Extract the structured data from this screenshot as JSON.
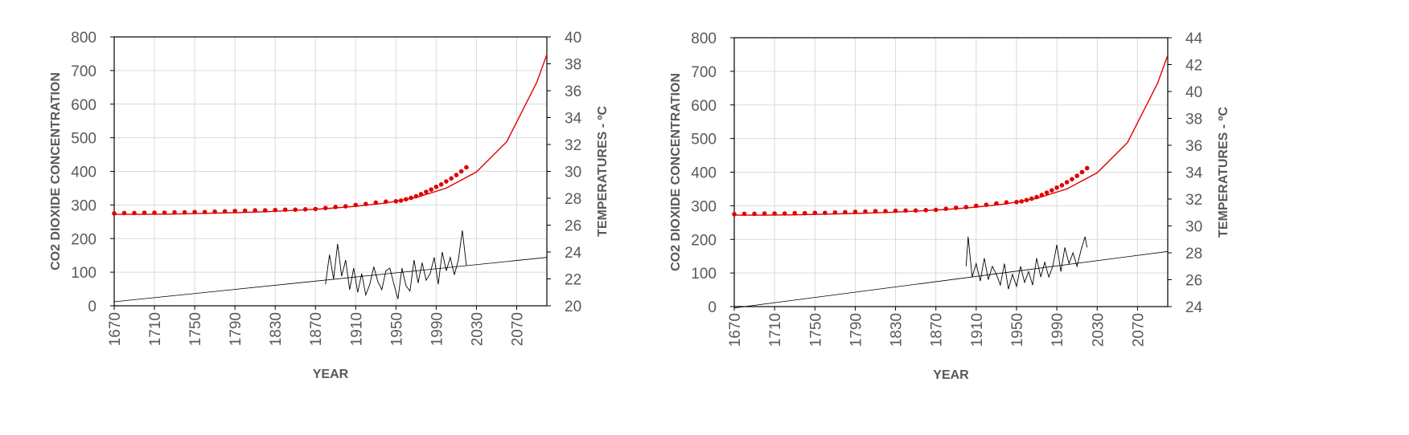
{
  "chart_data": [
    {
      "type": "line",
      "title": "",
      "xlabel": "YEAR",
      "ylabel": "CO2 DIOXIDE CONCENTRATION",
      "y2label": "TEMPERATURES - ºC",
      "xlim": [
        1670,
        2100
      ],
      "ylim": [
        0,
        800
      ],
      "y2lim": [
        20,
        40
      ],
      "x_ticks": [
        1670,
        1710,
        1750,
        1790,
        1830,
        1870,
        1910,
        1950,
        1990,
        2030,
        2070
      ],
      "y_ticks": [
        0,
        100,
        200,
        300,
        400,
        500,
        600,
        700,
        800
      ],
      "y2_ticks": [
        20,
        22,
        24,
        26,
        28,
        30,
        32,
        34,
        36,
        38,
        40
      ],
      "grid": true,
      "colors": {
        "co2": "#e00000",
        "temperature": "#000000"
      },
      "series": [
        {
          "kind": "scatter",
          "axis": "left",
          "x": [
            1670,
            1680,
            1690,
            1700,
            1710,
            1720,
            1730,
            1740,
            1750,
            1760,
            1770,
            1780,
            1790,
            1800,
            1810,
            1820,
            1830,
            1840,
            1850,
            1860,
            1870,
            1880,
            1890,
            1900,
            1910,
            1920,
            1930,
            1940,
            1950,
            1955,
            1960,
            1965,
            1970,
            1975,
            1980,
            1985,
            1990,
            1995,
            2000,
            2005,
            2010,
            2015,
            2020
          ],
          "values": [
            275,
            276,
            276,
            277,
            277,
            277,
            278,
            278,
            279,
            279,
            280,
            281,
            282,
            283,
            284,
            284,
            285,
            286,
            286,
            287,
            288,
            291,
            294,
            296,
            300,
            303,
            307,
            310,
            311,
            313,
            317,
            321,
            326,
            332,
            339,
            346,
            354,
            361,
            370,
            379,
            389,
            400,
            412
          ]
        },
        {
          "kind": "fit",
          "axis": "left",
          "x": [
            1670,
            1700,
            1730,
            1760,
            1790,
            1820,
            1850,
            1880,
            1910,
            1940,
            1970,
            2000,
            2030,
            2060,
            2090,
            2100
          ],
          "values": [
            272,
            272,
            273,
            275,
            277,
            280,
            284,
            289,
            296,
            306,
            322,
            350,
            398,
            488,
            665,
            748
          ]
        },
        {
          "kind": "line",
          "axis": "right",
          "x": [
            1880,
            1884,
            1888,
            1892,
            1896,
            1900,
            1904,
            1908,
            1912,
            1916,
            1920,
            1924,
            1928,
            1932,
            1936,
            1940,
            1944,
            1948,
            1952,
            1956,
            1960,
            1964,
            1968,
            1972,
            1976,
            1980,
            1984,
            1988,
            1992,
            1996,
            2000,
            2004,
            2008,
            2012,
            2016,
            2020
          ],
          "values": [
            21.6,
            23.8,
            22.0,
            24.6,
            22.2,
            23.4,
            21.2,
            22.8,
            21.0,
            22.4,
            20.8,
            21.6,
            22.9,
            21.8,
            21.2,
            22.6,
            22.8,
            21.6,
            20.5,
            22.8,
            21.5,
            21.1,
            23.4,
            21.7,
            23.2,
            21.9,
            22.4,
            23.6,
            21.6,
            24.0,
            22.6,
            23.6,
            22.3,
            23.4,
            25.6,
            23.0
          ]
        },
        {
          "kind": "trend",
          "axis": "right",
          "x": [
            1670,
            2100
          ],
          "values": [
            20.3,
            23.6
          ]
        }
      ]
    },
    {
      "type": "line",
      "title": "",
      "xlabel": "YEAR",
      "ylabel": "CO2 DIOXIDE CONCENTRATION",
      "y2label": "TEMPERATURES - ºC",
      "xlim": [
        1670,
        2100
      ],
      "ylim": [
        0,
        800
      ],
      "y2lim": [
        24,
        44
      ],
      "x_ticks": [
        1670,
        1710,
        1750,
        1790,
        1830,
        1870,
        1910,
        1950,
        1990,
        2030,
        2070
      ],
      "y_ticks": [
        0,
        100,
        200,
        300,
        400,
        500,
        600,
        700,
        800
      ],
      "y2_ticks": [
        24,
        26,
        28,
        30,
        32,
        34,
        36,
        38,
        40,
        42,
        44
      ],
      "grid": true,
      "colors": {
        "co2": "#e00000",
        "temperature": "#000000"
      },
      "series": [
        {
          "kind": "scatter",
          "axis": "left",
          "x": [
            1670,
            1680,
            1690,
            1700,
            1710,
            1720,
            1730,
            1740,
            1750,
            1760,
            1770,
            1780,
            1790,
            1800,
            1810,
            1820,
            1830,
            1840,
            1850,
            1860,
            1870,
            1880,
            1890,
            1900,
            1910,
            1920,
            1930,
            1940,
            1950,
            1955,
            1960,
            1965,
            1970,
            1975,
            1980,
            1985,
            1990,
            1995,
            2000,
            2005,
            2010,
            2015,
            2020
          ],
          "values": [
            275,
            276,
            276,
            277,
            277,
            277,
            278,
            278,
            279,
            279,
            280,
            281,
            282,
            283,
            284,
            284,
            285,
            286,
            286,
            287,
            288,
            291,
            294,
            296,
            300,
            303,
            307,
            310,
            311,
            313,
            317,
            321,
            326,
            332,
            339,
            346,
            354,
            361,
            370,
            379,
            389,
            400,
            412
          ]
        },
        {
          "kind": "fit",
          "axis": "left",
          "x": [
            1670,
            1700,
            1730,
            1760,
            1790,
            1820,
            1850,
            1880,
            1910,
            1940,
            1970,
            2000,
            2030,
            2060,
            2090,
            2100
          ],
          "values": [
            272,
            272,
            273,
            275,
            277,
            280,
            284,
            289,
            296,
            306,
            322,
            350,
            398,
            488,
            665,
            748
          ]
        },
        {
          "kind": "line",
          "axis": "right",
          "x": [
            1900,
            1902,
            1906,
            1910,
            1914,
            1918,
            1922,
            1926,
            1930,
            1934,
            1938,
            1942,
            1946,
            1950,
            1954,
            1958,
            1962,
            1966,
            1970,
            1974,
            1978,
            1982,
            1986,
            1990,
            1994,
            1998,
            2002,
            2006,
            2010,
            2014,
            2018,
            2020
          ],
          "values": [
            27.0,
            29.2,
            26.2,
            27.2,
            25.9,
            27.6,
            26.0,
            27.0,
            26.4,
            25.6,
            27.2,
            25.3,
            26.4,
            25.5,
            27.0,
            25.8,
            26.6,
            25.6,
            27.6,
            26.2,
            27.3,
            26.2,
            27.0,
            28.6,
            26.6,
            28.4,
            27.2,
            28.0,
            27.0,
            28.2,
            29.2,
            28.4
          ]
        },
        {
          "kind": "trend",
          "axis": "right",
          "x": [
            1670,
            2100
          ],
          "values": [
            23.9,
            28.1
          ]
        }
      ]
    }
  ]
}
